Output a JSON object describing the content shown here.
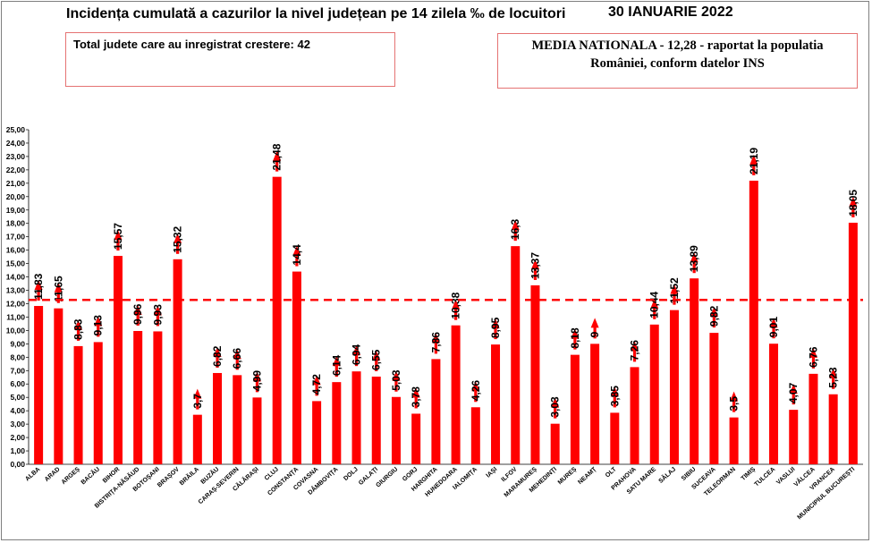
{
  "header": {
    "title": "Incidența cumulată a cazurilor la nivel județean pe 14 zilela ‰ de locuitori",
    "date": "30 IANUARIE 2022"
  },
  "info_left": {
    "text": "Total judete care au inregistrat crestere: 42"
  },
  "info_right": {
    "line1": "MEDIA NATIONALA - 12,28 -  raportat la populatia",
    "line2": "României, conform datelor INS"
  },
  "colors": {
    "bar": "#ff0000",
    "arrow": "#ff0000",
    "reference_line": "#ff0000"
  },
  "chart_data": {
    "type": "bar",
    "title": "Incidența cumulată a cazurilor la nivel județean pe 14 zilela ‰ de locuitori",
    "xlabel": "",
    "ylabel": "",
    "ylim": [
      0,
      25
    ],
    "y_ticks": [
      "0,00",
      "1,00",
      "2,00",
      "3,00",
      "4,00",
      "5,00",
      "6,00",
      "7,00",
      "8,00",
      "9,00",
      "10,00",
      "11,00",
      "12,00",
      "13,00",
      "14,00",
      "15,00",
      "16,00",
      "17,00",
      "18,00",
      "19,00",
      "20,00",
      "21,00",
      "22,00",
      "23,00",
      "24,00",
      "25,00"
    ],
    "grid": false,
    "legend": "none",
    "reference_line": {
      "value": 12.28,
      "style": "dashed"
    },
    "trend": "up",
    "categories": [
      "ALBA",
      "ARAD",
      "ARGEȘ",
      "BACĂU",
      "BIHOR",
      "BISTRIȚA-NĂSĂUD",
      "BOTOȘANI",
      "BRAȘOV",
      "BRĂILA",
      "BUZĂU",
      "CARAȘ-SEVERIN",
      "CĂLĂRAȘI",
      "CLUJ",
      "CONSTANȚA",
      "COVASNA",
      "DÂMBOVIȚA",
      "DOLJ",
      "GALAȚI",
      "GIURGIU",
      "GORJ",
      "HARGHITA",
      "HUNEDOARA",
      "IALOMIȚA",
      "IAȘI",
      "ILFOV",
      "MARAMUREȘ",
      "MEHEDINȚI",
      "MUREȘ",
      "NEAMȚ",
      "OLT",
      "PRAHOVA",
      "SATU MARE",
      "SĂLAJ",
      "SIBIU",
      "SUCEAVA",
      "TELEORMAN",
      "TIMIȘ",
      "TULCEA",
      "VASLUI",
      "VÂLCEA",
      "VRANCEA",
      "MUNICIPIUL BUCUREȘTI"
    ],
    "values": [
      11.83,
      11.65,
      8.83,
      9.13,
      15.57,
      9.96,
      9.93,
      15.32,
      3.7,
      6.82,
      6.66,
      4.99,
      21.48,
      14.4,
      4.72,
      6.14,
      6.94,
      6.55,
      5.03,
      3.78,
      7.86,
      10.38,
      4.26,
      8.95,
      16.3,
      13.37,
      3.03,
      8.18,
      9,
      3.85,
      7.26,
      10.44,
      11.52,
      13.89,
      9.82,
      3.5,
      21.19,
      9.01,
      4.07,
      6.76,
      5.23,
      18.05
    ],
    "value_labels": [
      "11,83",
      "11,65",
      "8,83",
      "9,13",
      "15,57",
      "9,96",
      "9,93",
      "15,32",
      "3,7",
      "6,82",
      "6,66",
      "4,99",
      "21,48",
      "14,4",
      "4,72",
      "6,14",
      "6,94",
      "6,55",
      "5,03",
      "3,78",
      "7,86",
      "10,38",
      "4,26",
      "8,95",
      "16,3",
      "13,37",
      "3,03",
      "8,18",
      "9",
      "3,85",
      "7,26",
      "10,44",
      "11,52",
      "13,89",
      "9,82",
      "3,5",
      "21,19",
      "9,01",
      "4,07",
      "6,76",
      "5,23",
      "18,05"
    ]
  }
}
